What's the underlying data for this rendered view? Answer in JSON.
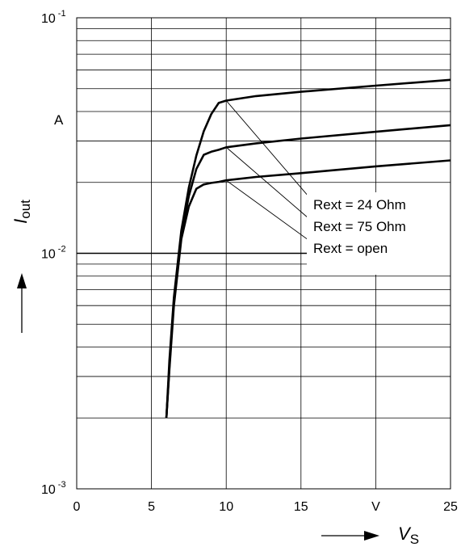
{
  "chart_data": {
    "type": "line",
    "xlabel": "V",
    "xlabel_subscript": "S",
    "ylabel": "I",
    "ylabel_subscript": "out",
    "x_unit": "V",
    "y_unit": "A",
    "xlim": [
      0,
      25
    ],
    "ylim": [
      0.001,
      0.1
    ],
    "y_scale": "log",
    "grid": true,
    "x_ticks": [
      "0",
      "5",
      "10",
      "15",
      "V",
      "25"
    ],
    "y_ticks": [
      {
        "base": "10",
        "exp": "-1"
      },
      {
        "base": "10",
        "exp": "-2"
      },
      {
        "base": "10",
        "exp": "-3"
      }
    ],
    "series": [
      {
        "name": "Rext = 24 Ohm",
        "x": [
          6.0,
          6.2,
          6.5,
          7.0,
          7.5,
          8.0,
          8.5,
          9.0,
          9.5,
          10,
          12,
          15,
          20,
          25
        ],
        "y": [
          0.002,
          0.0035,
          0.0065,
          0.0125,
          0.019,
          0.026,
          0.033,
          0.039,
          0.0435,
          0.0445,
          0.0465,
          0.0485,
          0.0515,
          0.0545
        ]
      },
      {
        "name": "Rext = 75 Ohm",
        "x": [
          6.0,
          6.2,
          6.5,
          7.0,
          7.5,
          8.0,
          8.5,
          9.0,
          9.5,
          10,
          12,
          15,
          20,
          25
        ],
        "y": [
          0.002,
          0.0033,
          0.0063,
          0.012,
          0.0175,
          0.0228,
          0.0262,
          0.027,
          0.0275,
          0.0282,
          0.0293,
          0.0307,
          0.0328,
          0.035
        ]
      },
      {
        "name": "Rext = open",
        "x": [
          6.0,
          6.2,
          6.5,
          7.0,
          7.5,
          8.0,
          8.5,
          9.0,
          9.5,
          10,
          12,
          15,
          20,
          25
        ],
        "y": [
          0.002,
          0.0032,
          0.006,
          0.0115,
          0.0158,
          0.0188,
          0.0196,
          0.0199,
          0.0201,
          0.0204,
          0.0211,
          0.0219,
          0.0234,
          0.0248
        ]
      }
    ],
    "legend": [
      "Rext = 24 Ohm",
      "Rext = 75 Ohm",
      "Rext = open"
    ]
  },
  "colors": {
    "line": "#000000",
    "grid": "#000000",
    "background": "#ffffff"
  }
}
